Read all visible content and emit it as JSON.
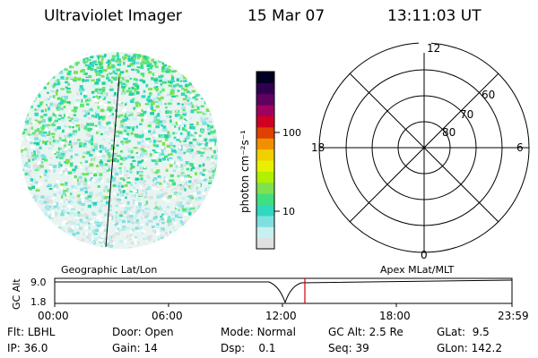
{
  "header": {
    "title": "Ultraviolet Imager",
    "date": "15 Mar 07",
    "time": "13:11:03 UT"
  },
  "colorbar": {
    "unit_label": "photon cm⁻²s⁻¹",
    "ticks": [
      "100",
      "10"
    ],
    "colors": [
      "#e0e0e0",
      "#c8f0f0",
      "#7fe0e0",
      "#30d8c0",
      "#40e080",
      "#7fe050",
      "#b0f000",
      "#e8f000",
      "#f0d000",
      "#f09000",
      "#e04000",
      "#d00020",
      "#a00060",
      "#600060",
      "#300050",
      "#000020"
    ]
  },
  "polar": {
    "mlt_labels": [
      "12",
      "18",
      "6",
      "0"
    ],
    "lat_labels": [
      "60",
      "70",
      "80"
    ]
  },
  "timeline": {
    "left_label": "Geographic Lat/Lon",
    "right_label": "Apex MLat/MLT",
    "axis_title": "GC Alt",
    "y_ticks": [
      "9.0",
      "1.8"
    ],
    "x_ticks": [
      "00:00",
      "06:00",
      "12:00",
      "18:00",
      "23:59"
    ],
    "marker_color": "#d00000"
  },
  "info": {
    "rows": [
      [
        {
          "label": "Flt:",
          "value": "LBHL"
        },
        {
          "label": "Door:",
          "value": "Open"
        },
        {
          "label": "Mode:",
          "value": "Normal"
        },
        {
          "label": "GC Alt:",
          "value": "2.5 Re"
        },
        {
          "label": "GLat:",
          "value": "9.5"
        }
      ],
      [
        {
          "label": "IP:",
          "value": "36.0"
        },
        {
          "label": "Gain:",
          "value": "14"
        },
        {
          "label": "Dsp:",
          "value": "0.1"
        },
        {
          "label": "Seq:",
          "value": "39"
        },
        {
          "label": "GLon:",
          "value": "142.2"
        }
      ]
    ]
  }
}
